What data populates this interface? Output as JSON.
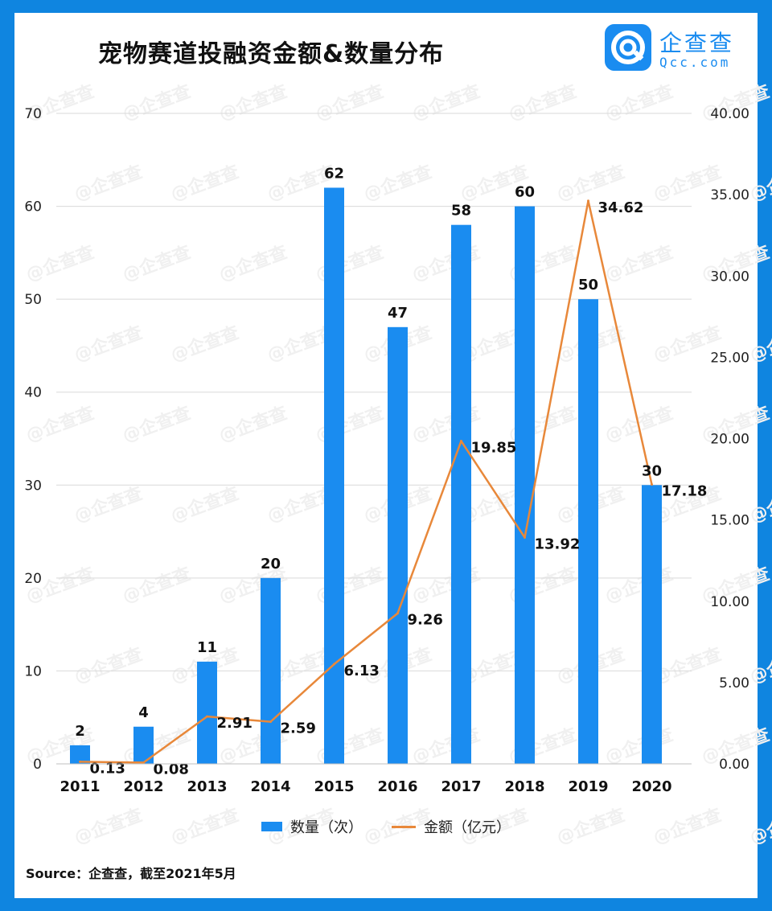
{
  "header": {
    "title": "宠物赛道投融资金额&数量分布"
  },
  "logo": {
    "name": "企查查",
    "url": "Qcc.com",
    "brand_color": "#1a8cf0"
  },
  "watermark_text": "企查查",
  "chart_data": {
    "type": "bar+line",
    "title": "宠物赛道投融资金额&数量分布",
    "categories": [
      "2011",
      "2012",
      "2013",
      "2014",
      "2015",
      "2016",
      "2017",
      "2018",
      "2019",
      "2020"
    ],
    "series": [
      {
        "name": "数量（次）",
        "type": "bar",
        "axis": "left",
        "color": "#1a8cf0",
        "values": [
          2,
          4,
          11,
          20,
          62,
          47,
          58,
          60,
          50,
          30
        ],
        "labels": [
          "2",
          "4",
          "11",
          "20",
          "62",
          "47",
          "58",
          "60",
          "50",
          "30"
        ]
      },
      {
        "name": "金额（亿元）",
        "type": "line",
        "axis": "right",
        "color": "#e8883a",
        "values": [
          0.13,
          0.08,
          2.91,
          2.59,
          6.13,
          9.26,
          19.85,
          13.92,
          34.62,
          17.18
        ],
        "labels": [
          "0.13",
          "0.08",
          "2.91",
          "2.59",
          "6.13",
          "9.26",
          "19.85",
          "13.92",
          "34.62",
          "17.18"
        ]
      }
    ],
    "y_left": {
      "min": 0,
      "max": 70,
      "ticks": [
        "0",
        "10",
        "20",
        "30",
        "40",
        "50",
        "60",
        "70"
      ],
      "tick_values": [
        0,
        10,
        20,
        30,
        40,
        50,
        60,
        70
      ]
    },
    "y_right": {
      "min": 0,
      "max": 40,
      "ticks": [
        "0.00",
        "5.00",
        "10.00",
        "15.00",
        "20.00",
        "25.00",
        "30.00",
        "35.00",
        "40.00"
      ],
      "tick_values": [
        0,
        5,
        10,
        15,
        20,
        25,
        30,
        35,
        40
      ]
    },
    "grid": true,
    "legend_position": "bottom"
  },
  "source": "Source：企查查，截至2021年5月"
}
